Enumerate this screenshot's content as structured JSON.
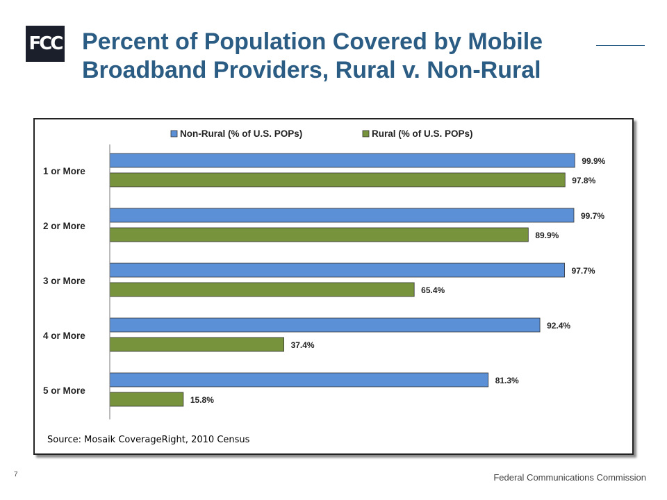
{
  "logo": {
    "text": "FCC",
    "icon": "fcc-logo"
  },
  "slide_title": "Percent of Population Covered by Mobile Broadband Providers, Rural v. Non-Rural",
  "source_note": "Source:  Mosaik CoverageRight, 2010 Census",
  "page_number": "7",
  "footer": "Federal Communications Commission",
  "colors": {
    "title": "#2b5c83",
    "non_rural": "#5b8fd6",
    "rural": "#77933c"
  },
  "chart_data": {
    "type": "bar",
    "orientation": "horizontal",
    "categories": [
      "1 or More",
      "2 or More",
      "3 or More",
      "4 or More",
      "5 or More"
    ],
    "series": [
      {
        "name": "Non-Rural (% of U.S. POPs)",
        "values": [
          99.9,
          99.7,
          97.7,
          92.4,
          81.3
        ],
        "labels": [
          "99.9%",
          "99.7%",
          "97.7%",
          "92.4%",
          "81.3%"
        ],
        "color": "#5b8fd6"
      },
      {
        "name": "Rural (% of U.S. POPs)",
        "values": [
          97.8,
          89.9,
          65.4,
          37.4,
          15.8
        ],
        "labels": [
          "97.8%",
          "89.9%",
          "65.4%",
          "37.4%",
          "15.8%"
        ],
        "color": "#77933c"
      }
    ],
    "xlim": [
      0,
      100
    ],
    "legend_position": "top",
    "grid": false
  }
}
